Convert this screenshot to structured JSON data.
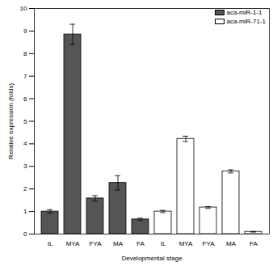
{
  "chart_data": {
    "type": "bar",
    "xlabel": "Developmental stage",
    "ylabel": "Relative expression (folds)",
    "categories": [
      "IL",
      "MYA",
      "FYA",
      "MA",
      "FA"
    ],
    "series": [
      {
        "name": "aca-miR-1-1",
        "color": "#555555",
        "values": [
          1.0,
          8.85,
          1.58,
          2.27,
          0.65
        ],
        "errors": [
          0.08,
          0.45,
          0.12,
          0.32,
          0.05
        ]
      },
      {
        "name": "aca-miR-71-1",
        "color": "#ffffff",
        "values": [
          1.0,
          4.22,
          1.18,
          2.78,
          0.1
        ],
        "errors": [
          0.05,
          0.12,
          0.04,
          0.07,
          0.01
        ]
      }
    ],
    "ylim": [
      0,
      10
    ],
    "yticks": [
      0,
      1,
      2,
      3,
      4,
      5,
      6,
      7,
      8,
      9,
      10
    ],
    "legend": "top-right",
    "grid": false
  }
}
